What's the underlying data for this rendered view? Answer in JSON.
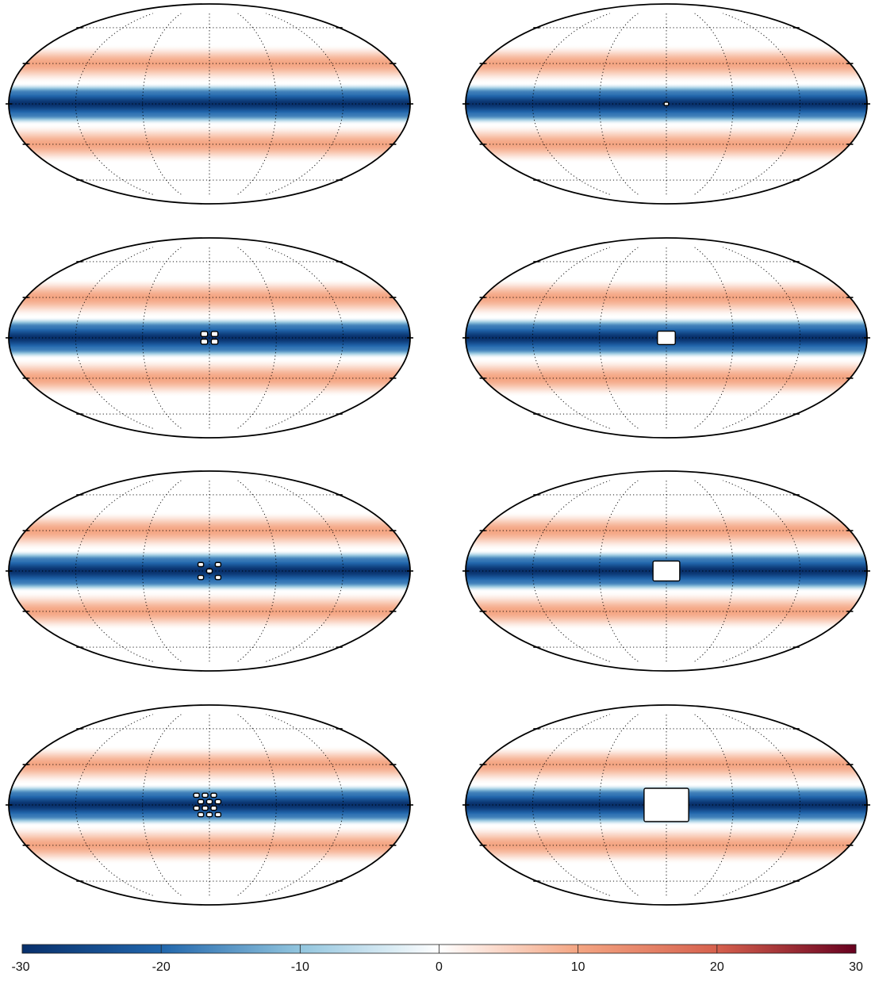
{
  "chart_data": {
    "type": "heatmap",
    "projection": "mollweide",
    "layout": "4 rows x 2 columns",
    "colormap": "diverging blue-white-red",
    "colors": {
      "min": "#08306b",
      "mid_negative": "#4a90c4",
      "zero": "#ffffff",
      "mid_positive": "#f4a582",
      "max": "#67001f"
    },
    "field": {
      "description_values_by_latitude_deg": [
        {
          "lat": 0,
          "value": -30
        },
        {
          "lat": 8,
          "value": -18
        },
        {
          "lat": 15,
          "value": 0
        },
        {
          "lat": 30,
          "value": 10
        },
        {
          "lat": 45,
          "value": 0
        },
        {
          "lat": 90,
          "value": 0
        }
      ]
    },
    "graticule": {
      "lon_step_deg": 60,
      "lat_step_deg": 30,
      "style": "dotted"
    },
    "panels": [
      {
        "id": "r1c1",
        "marker": "none"
      },
      {
        "id": "r1c2",
        "marker": "single small box",
        "grid": 1,
        "box_deg": 4
      },
      {
        "id": "r2c1",
        "marker": "box grid",
        "grid": 2,
        "box_deg": 6
      },
      {
        "id": "r2c2",
        "marker": "single box",
        "grid": 1,
        "box_deg": 16
      },
      {
        "id": "r3c1",
        "marker": "X pattern",
        "grid": 3,
        "box_deg": 5
      },
      {
        "id": "r3c2",
        "marker": "single box",
        "grid": 1,
        "box_deg": 24
      },
      {
        "id": "r4c1",
        "marker": "checker pattern",
        "grid": 4,
        "box_deg": 5
      },
      {
        "id": "r4c2",
        "marker": "single box",
        "grid": 1,
        "box_deg": 40
      }
    ],
    "colorbar": {
      "orientation": "horizontal",
      "range": [
        -30,
        30
      ],
      "ticks": [
        "-30",
        "-20",
        "-10",
        "0",
        "10",
        "20",
        "30"
      ]
    }
  }
}
